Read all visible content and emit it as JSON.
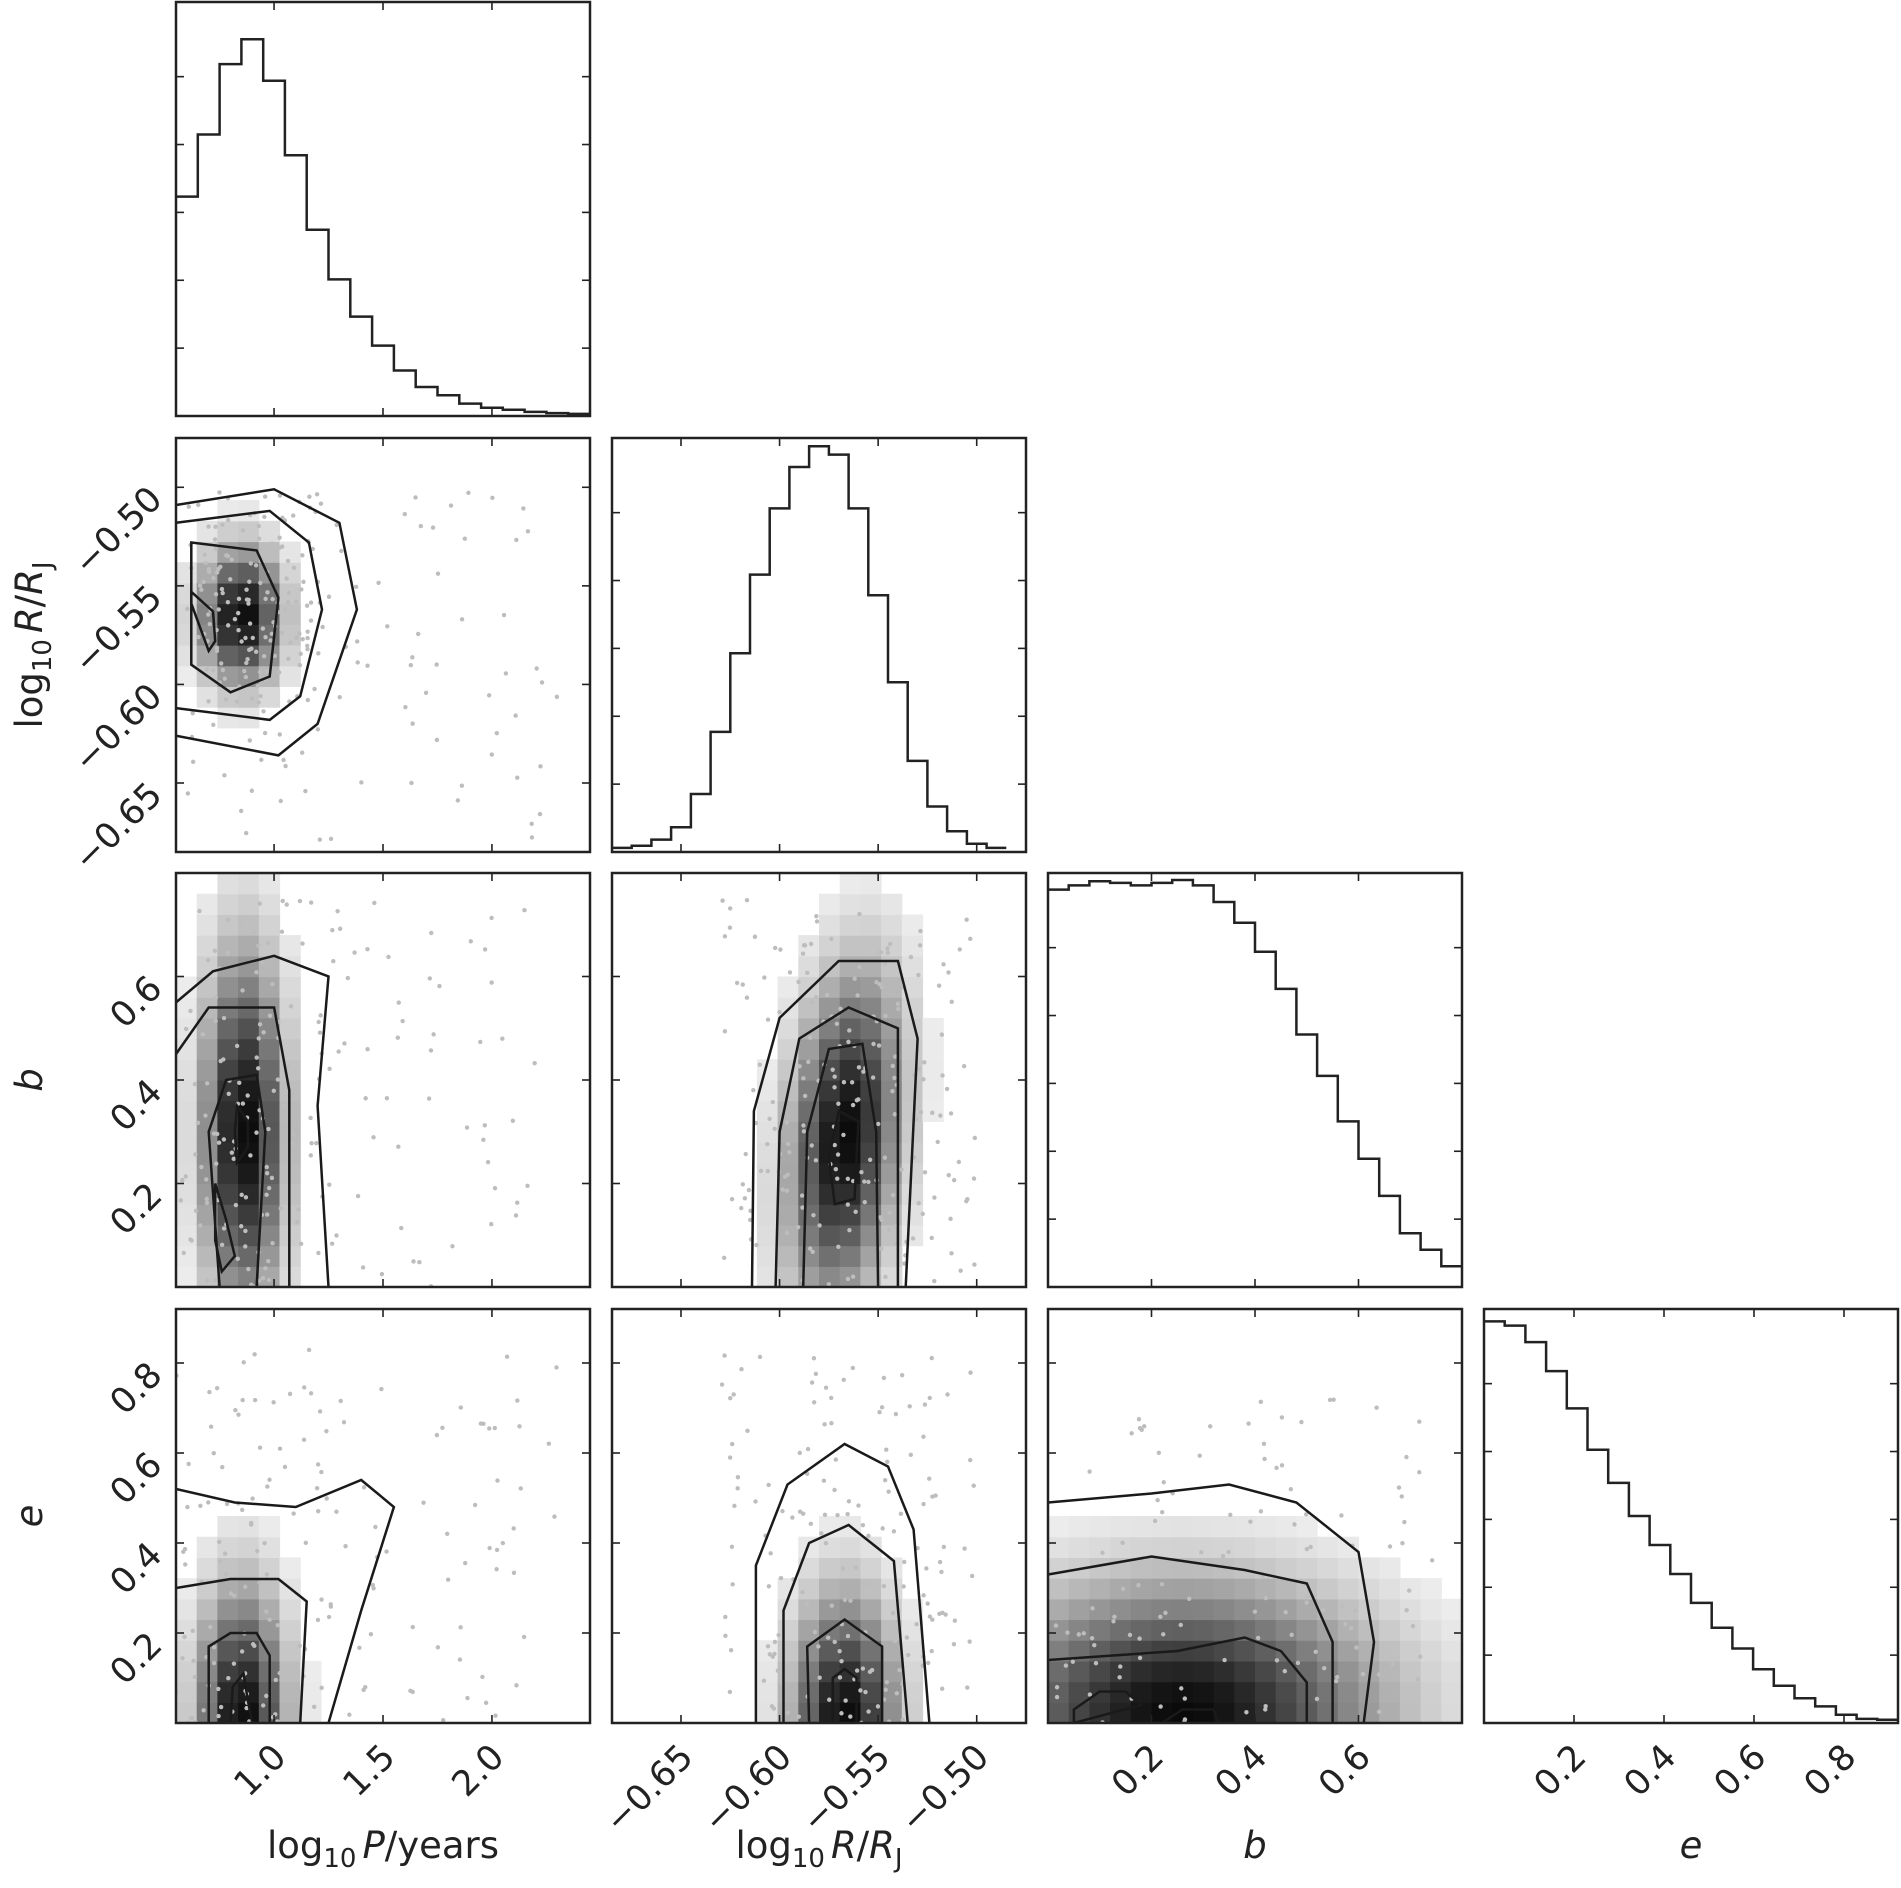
{
  "chart_data": {
    "type": "corner",
    "parameters": [
      {
        "key": "logP",
        "label": {
          "pre": "log",
          "sub": "10",
          "var": "P",
          "post": "/years",
          "sub2": ""
        },
        "range": [
          0.55,
          2.45
        ],
        "ticks": [
          1.0,
          1.5,
          2.0
        ],
        "tick_labels": [
          "1.0",
          "1.5",
          "2.0"
        ]
      },
      {
        "key": "logR",
        "label": {
          "pre": "log",
          "sub": "10",
          "var": "R",
          "post": "/",
          "var2": "R",
          "sub2": "J"
        },
        "range": [
          -0.685,
          -0.475
        ],
        "ticks": [
          -0.65,
          -0.6,
          -0.55,
          -0.5
        ],
        "tick_labels": [
          "−0.65",
          "−0.60",
          "−0.55",
          "−0.50"
        ]
      },
      {
        "key": "b",
        "label": {
          "var": "b"
        },
        "range": [
          0.0,
          0.8
        ],
        "ticks": [
          0.2,
          0.4,
          0.6
        ],
        "tick_labels": [
          "0.2",
          "0.4",
          "0.6"
        ]
      },
      {
        "key": "e",
        "label": {
          "var": "e"
        },
        "range": [
          0.0,
          0.92
        ],
        "ticks": [
          0.2,
          0.4,
          0.6,
          0.8
        ],
        "tick_labels": [
          "0.2",
          "0.4",
          "0.6",
          "0.8"
        ]
      }
    ],
    "histograms": [
      {
        "param": "logP",
        "bin_width": 0.1,
        "start": 0.55,
        "counts": [
          0.53,
          0.68,
          0.85,
          0.91,
          0.81,
          0.63,
          0.45,
          0.33,
          0.24,
          0.17,
          0.11,
          0.07,
          0.05,
          0.03,
          0.02,
          0.015,
          0.01,
          0.007,
          0.005
        ]
      },
      {
        "param": "logR",
        "bin_width": 0.01,
        "start": -0.685,
        "counts": [
          0.01,
          0.015,
          0.03,
          0.06,
          0.14,
          0.29,
          0.48,
          0.67,
          0.83,
          0.93,
          0.98,
          0.96,
          0.83,
          0.62,
          0.41,
          0.22,
          0.11,
          0.05,
          0.02,
          0.01
        ]
      },
      {
        "param": "b",
        "bin_width": 0.04,
        "start": 0.0,
        "counts": [
          0.96,
          0.97,
          0.98,
          0.976,
          0.97,
          0.976,
          0.983,
          0.97,
          0.93,
          0.88,
          0.81,
          0.72,
          0.61,
          0.51,
          0.4,
          0.31,
          0.22,
          0.13,
          0.09,
          0.05
        ]
      },
      {
        "param": "e",
        "bin_width": 0.046,
        "start": 0.0,
        "counts": [
          0.97,
          0.96,
          0.92,
          0.85,
          0.76,
          0.66,
          0.58,
          0.5,
          0.43,
          0.36,
          0.29,
          0.23,
          0.18,
          0.13,
          0.09,
          0.06,
          0.04,
          0.02,
          0.01,
          0.008
        ]
      }
    ],
    "pairs": [
      {
        "x": "logP",
        "y": "logR",
        "peak": [
          0.85,
          -0.565
        ],
        "sigma": [
          0.12,
          0.022
        ],
        "rho": 0.0,
        "contours": [
          [
            [
              0.62,
              -0.553
            ],
            [
              0.72,
              -0.563
            ],
            [
              0.73,
              -0.578
            ],
            [
              0.7,
              -0.583
            ],
            [
              0.62,
              -0.559
            ]
          ],
          [
            [
              0.62,
              -0.528
            ],
            [
              0.92,
              -0.532
            ],
            [
              1.02,
              -0.556
            ],
            [
              0.98,
              -0.596
            ],
            [
              0.8,
              -0.604
            ],
            [
              0.62,
              -0.59
            ]
          ],
          [
            [
              0.55,
              -0.518
            ],
            [
              0.98,
              -0.512
            ],
            [
              1.16,
              -0.528
            ],
            [
              1.22,
              -0.562
            ],
            [
              1.12,
              -0.606
            ],
            [
              0.98,
              -0.618
            ],
            [
              0.55,
              -0.612
            ]
          ],
          [
            [
              0.55,
              -0.509
            ],
            [
              1.0,
              -0.501
            ],
            [
              1.3,
              -0.518
            ],
            [
              1.38,
              -0.562
            ],
            [
              1.2,
              -0.62
            ],
            [
              1.02,
              -0.636
            ],
            [
              0.55,
              -0.626
            ]
          ]
        ],
        "scatter_extent": [
          [
            0.6,
            2.3
          ],
          [
            -0.68,
            -0.5
          ]
        ]
      },
      {
        "x": "logP",
        "y": "b",
        "peak": [
          0.86,
          0.3
        ],
        "sigma": [
          0.12,
          0.22
        ],
        "rho": 0.0,
        "contours": [
          [
            [
              0.73,
              0.2
            ],
            [
              0.78,
              0.13
            ],
            [
              0.82,
              0.06
            ],
            [
              0.76,
              0.03
            ],
            [
              0.73,
              0.09
            ]
          ],
          [
            [
              0.83,
              0.35
            ],
            [
              0.88,
              0.32
            ],
            [
              0.88,
              0.27
            ],
            [
              0.83,
              0.24
            ],
            [
              0.82,
              0.3
            ]
          ],
          [
            [
              0.75,
              0.0
            ],
            [
              0.7,
              0.3
            ],
            [
              0.78,
              0.4
            ],
            [
              0.92,
              0.41
            ],
            [
              0.96,
              0.3
            ],
            [
              0.92,
              0.0
            ]
          ],
          [
            [
              0.55,
              0.45
            ],
            [
              0.7,
              0.54
            ],
            [
              1.0,
              0.54
            ],
            [
              1.07,
              0.38
            ],
            [
              1.07,
              0.0
            ]
          ],
          [
            [
              0.55,
              0.55
            ],
            [
              0.72,
              0.61
            ],
            [
              1.0,
              0.64
            ],
            [
              1.25,
              0.6
            ],
            [
              1.2,
              0.35
            ],
            [
              1.25,
              0.0
            ]
          ]
        ],
        "scatter_extent": [
          [
            0.55,
            2.2
          ],
          [
            0.0,
            0.75
          ]
        ]
      },
      {
        "x": "logR",
        "y": "b",
        "peak": [
          -0.567,
          0.29
        ],
        "sigma": [
          0.018,
          0.2
        ],
        "rho": 0.25,
        "contours": [
          [
            [
              -0.572,
              0.16
            ],
            [
              -0.575,
              0.25
            ],
            [
              -0.57,
              0.34
            ],
            [
              -0.56,
              0.32
            ],
            [
              -0.562,
              0.17
            ]
          ],
          [
            [
              -0.588,
              0.0
            ],
            [
              -0.586,
              0.3
            ],
            [
              -0.575,
              0.46
            ],
            [
              -0.558,
              0.47
            ],
            [
              -0.551,
              0.3
            ],
            [
              -0.55,
              0.0
            ]
          ],
          [
            [
              -0.602,
              0.0
            ],
            [
              -0.6,
              0.3
            ],
            [
              -0.59,
              0.48
            ],
            [
              -0.565,
              0.54
            ],
            [
              -0.54,
              0.5
            ],
            [
              -0.54,
              0.0
            ]
          ],
          [
            [
              -0.614,
              0.0
            ],
            [
              -0.613,
              0.34
            ],
            [
              -0.6,
              0.52
            ],
            [
              -0.57,
              0.63
            ],
            [
              -0.54,
              0.63
            ],
            [
              -0.53,
              0.48
            ],
            [
              -0.536,
              0.0
            ]
          ]
        ],
        "scatter_extent": [
          [
            -0.63,
            -0.5
          ],
          [
            0.0,
            0.75
          ]
        ]
      },
      {
        "x": "logP",
        "y": "e",
        "peak": [
          0.85,
          0.0
        ],
        "sigma": [
          0.13,
          0.19
        ],
        "rho": 0.0,
        "contours": [
          [
            [
              0.8,
              0.0
            ],
            [
              0.81,
              0.08
            ],
            [
              0.86,
              0.11
            ],
            [
              0.88,
              0.05
            ],
            [
              0.9,
              0.0
            ]
          ],
          [
            [
              0.7,
              0.0
            ],
            [
              0.7,
              0.17
            ],
            [
              0.8,
              0.2
            ],
            [
              0.92,
              0.2
            ],
            [
              0.98,
              0.15
            ],
            [
              0.98,
              0.0
            ]
          ],
          [
            [
              0.55,
              0.3
            ],
            [
              0.8,
              0.32
            ],
            [
              1.02,
              0.32
            ],
            [
              1.15,
              0.27
            ],
            [
              1.12,
              0.0
            ]
          ],
          [
            [
              0.55,
              0.52
            ],
            [
              0.82,
              0.49
            ],
            [
              1.1,
              0.48
            ],
            [
              1.4,
              0.54
            ],
            [
              1.55,
              0.48
            ],
            [
              1.4,
              0.25
            ],
            [
              1.25,
              0.0
            ]
          ]
        ],
        "scatter_extent": [
          [
            0.55,
            2.3
          ],
          [
            0.0,
            0.85
          ]
        ]
      },
      {
        "x": "logR",
        "y": "e",
        "peak": [
          -0.567,
          0.0
        ],
        "sigma": [
          0.017,
          0.18
        ],
        "rho": 0.0,
        "contours": [
          [
            [
              -0.573,
              0.0
            ],
            [
              -0.573,
              0.1
            ],
            [
              -0.567,
              0.12
            ],
            [
              -0.561,
              0.1
            ],
            [
              -0.561,
              0.0
            ]
          ],
          [
            [
              -0.585,
              0.0
            ],
            [
              -0.586,
              0.17
            ],
            [
              -0.567,
              0.23
            ],
            [
              -0.548,
              0.17
            ],
            [
              -0.548,
              0.0
            ]
          ],
          [
            [
              -0.598,
              0.0
            ],
            [
              -0.598,
              0.25
            ],
            [
              -0.585,
              0.4
            ],
            [
              -0.565,
              0.44
            ],
            [
              -0.542,
              0.36
            ],
            [
              -0.535,
              0.0
            ]
          ],
          [
            [
              -0.612,
              0.0
            ],
            [
              -0.612,
              0.35
            ],
            [
              -0.596,
              0.53
            ],
            [
              -0.567,
              0.62
            ],
            [
              -0.545,
              0.57
            ],
            [
              -0.532,
              0.43
            ],
            [
              -0.524,
              0.0
            ]
          ]
        ],
        "scatter_extent": [
          [
            -0.63,
            -0.5
          ],
          [
            0.0,
            0.82
          ]
        ]
      },
      {
        "x": "b",
        "y": "e",
        "peak": [
          0.26,
          0.02
        ],
        "sigma": [
          0.24,
          0.18
        ],
        "rho": 0.0,
        "contours": [
          [
            [
              0.05,
              0.0
            ],
            [
              0.05,
              0.03
            ],
            [
              0.1,
              0.07
            ],
            [
              0.15,
              0.07
            ],
            [
              0.18,
              0.04
            ]
          ],
          [
            [
              0.22,
              0.0
            ],
            [
              0.26,
              0.03
            ],
            [
              0.32,
              0.03
            ],
            [
              0.33,
              0.0
            ]
          ],
          [
            [
              0.0,
              0.14
            ],
            [
              0.25,
              0.16
            ],
            [
              0.38,
              0.19
            ],
            [
              0.45,
              0.16
            ],
            [
              0.5,
              0.09
            ],
            [
              0.5,
              0.0
            ]
          ],
          [
            [
              0.0,
              0.33
            ],
            [
              0.2,
              0.37
            ],
            [
              0.38,
              0.34
            ],
            [
              0.5,
              0.31
            ],
            [
              0.55,
              0.18
            ],
            [
              0.55,
              0.0
            ]
          ],
          [
            [
              0.0,
              0.49
            ],
            [
              0.2,
              0.51
            ],
            [
              0.35,
              0.53
            ],
            [
              0.48,
              0.49
            ],
            [
              0.6,
              0.38
            ],
            [
              0.63,
              0.18
            ],
            [
              0.61,
              0.0
            ]
          ]
        ],
        "scatter_extent": [
          [
            0.0,
            0.75
          ],
          [
            0.0,
            0.72
          ]
        ]
      }
    ]
  }
}
